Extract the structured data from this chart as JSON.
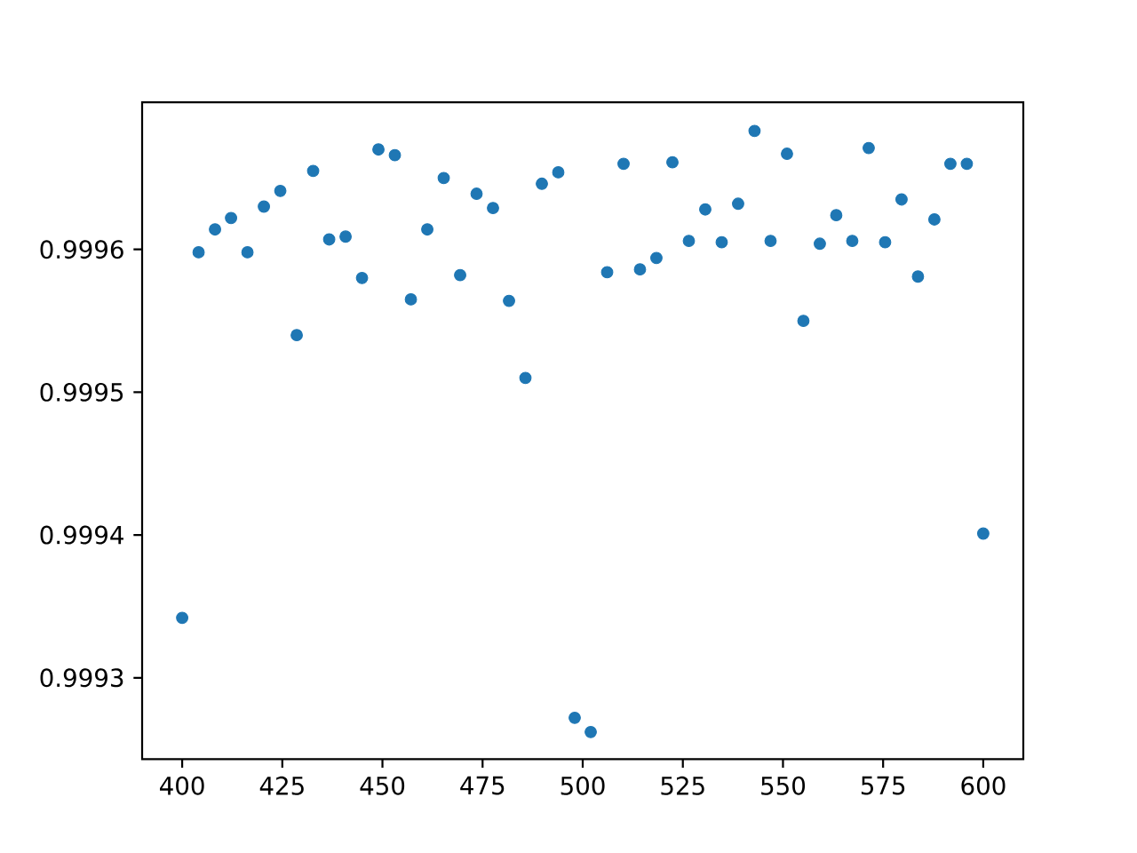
{
  "chart_data": {
    "type": "scatter",
    "color": "#1f77b4",
    "marker": "circle",
    "x": [
      400,
      404.1,
      408.2,
      412.2,
      416.3,
      420.4,
      424.5,
      428.6,
      432.7,
      436.7,
      440.8,
      444.9,
      449,
      453.1,
      457.1,
      461.2,
      465.3,
      469.4,
      473.5,
      477.6,
      481.6,
      485.7,
      489.8,
      493.9,
      498,
      502,
      506.1,
      510.2,
      514.3,
      518.4,
      522.4,
      526.5,
      530.6,
      534.7,
      538.8,
      542.9,
      546.9,
      551,
      555.1,
      559.2,
      563.3,
      567.3,
      571.4,
      575.5,
      579.6,
      583.7,
      587.8,
      591.8,
      595.9,
      600
    ],
    "values": [
      0.999342,
      0.999598,
      0.999614,
      0.999622,
      0.999598,
      0.99963,
      0.999641,
      0.99954,
      0.999655,
      0.999607,
      0.999609,
      0.99958,
      0.99967,
      0.999666,
      0.999565,
      0.999614,
      0.99965,
      0.999582,
      0.999639,
      0.999629,
      0.999564,
      0.99951,
      0.999646,
      0.999654,
      0.999272,
      0.999262,
      0.999584,
      0.99966,
      0.999586,
      0.999594,
      0.999661,
      0.999606,
      0.999628,
      0.999605,
      0.999632,
      0.999683,
      0.999606,
      0.999667,
      0.99955,
      0.999604,
      0.999624,
      0.999606,
      0.999671,
      0.999605,
      0.999635,
      0.999581,
      0.999621,
      0.99966,
      0.99966,
      0.999401
    ],
    "xlim": [
      390,
      610
    ],
    "ylim": [
      0.999243,
      0.999703
    ],
    "xticks": [
      400,
      425,
      450,
      475,
      500,
      525,
      550,
      575,
      600
    ],
    "yticks": [
      0.9993,
      0.9994,
      0.9995,
      0.9996
    ]
  }
}
